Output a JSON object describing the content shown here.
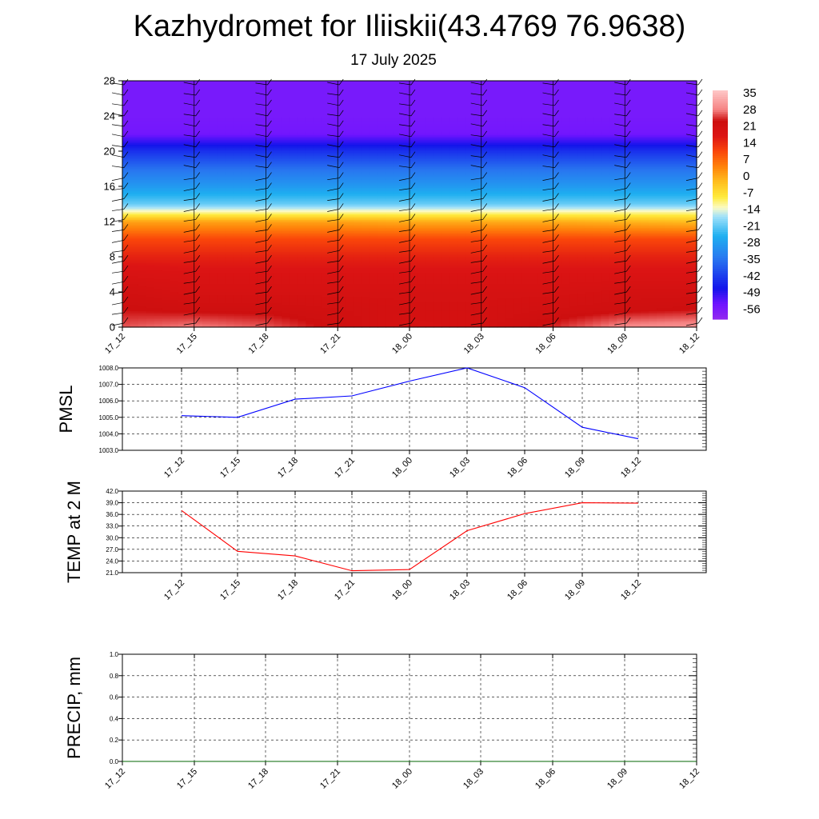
{
  "header": {
    "title": "Kazhydromet for Iliiskii(43.4769 76.9638)",
    "date": "17 July 2025"
  },
  "time_labels": [
    "17_12",
    "17_15",
    "17_18",
    "17_21",
    "18_00",
    "18_03",
    "18_06",
    "18_09",
    "18_12"
  ],
  "chart_data": [
    {
      "type": "heatmap",
      "title": "",
      "xlabel": "",
      "ylabel": "",
      "x": [
        "17_12",
        "17_15",
        "17_18",
        "17_21",
        "18_00",
        "18_03",
        "18_06",
        "18_09",
        "18_12"
      ],
      "y_ticks": [
        0,
        4,
        8,
        12,
        16,
        20,
        24,
        28
      ],
      "ylim": [
        0,
        28
      ],
      "y_levels": [
        0,
        2,
        4,
        6,
        8,
        10,
        12,
        13,
        14,
        16,
        18,
        20,
        21,
        22,
        24,
        28
      ],
      "values": [
        [
          31,
          33,
          31,
          27,
          24,
          25,
          29,
          34,
          35
        ],
        [
          28,
          27,
          27,
          26,
          25,
          25,
          26,
          27,
          28
        ],
        [
          26,
          24,
          24,
          24,
          24,
          24,
          24,
          25,
          25
        ],
        [
          23,
          22,
          22,
          22,
          22,
          22,
          22,
          22,
          22
        ],
        [
          19,
          19,
          19,
          19,
          19,
          19,
          19,
          19,
          19
        ],
        [
          14,
          14,
          14,
          14,
          14,
          14,
          14,
          14,
          14
        ],
        [
          3,
          3,
          3,
          3,
          2,
          2,
          2,
          1,
          0
        ],
        [
          -10,
          -10,
          -10,
          -10,
          -10,
          -10,
          -10,
          -10,
          -10
        ],
        [
          -20,
          -20,
          -20,
          -20,
          -20,
          -20,
          -20,
          -20,
          -20
        ],
        [
          -29,
          -29,
          -29,
          -29,
          -29,
          -29,
          -29,
          -29,
          -29
        ],
        [
          -36,
          -36,
          -36,
          -36,
          -36,
          -36,
          -36,
          -36,
          -36
        ],
        [
          -45,
          -45,
          -45,
          -45,
          -45,
          -45,
          -45,
          -45,
          -45
        ],
        [
          -51,
          -51,
          -51,
          -51,
          -51,
          -51,
          -51,
          -51,
          -51
        ],
        [
          -57,
          -57,
          -57,
          -57,
          -57,
          -57,
          -57,
          -57,
          -57
        ],
        [
          -58,
          -58,
          -58,
          -58,
          -58,
          -58,
          -58,
          -58,
          -58
        ],
        [
          -58,
          -58,
          -58,
          -58,
          -58,
          -58,
          -58,
          -58,
          -58
        ]
      ],
      "colorbar": {
        "labels": [
          "35",
          "28",
          "21",
          "14",
          "7",
          "0",
          "-7",
          "-14",
          "-21",
          "-28",
          "-35",
          "-42",
          "-49",
          "-56"
        ],
        "range": [
          -63,
          42
        ]
      },
      "wind_barbs": "black barbs at each time step and level"
    },
    {
      "type": "line",
      "ylabel": "PMSL",
      "x": [
        "17_12",
        "17_15",
        "17_18",
        "17_21",
        "18_00",
        "18_03",
        "18_06",
        "18_09",
        "18_12"
      ],
      "series": [
        {
          "color": "#0000ff",
          "values": [
            1005.1,
            1005.0,
            1006.1,
            1006.3,
            1007.2,
            1008.0,
            1006.8,
            1004.4,
            1003.7
          ]
        }
      ],
      "ylim": [
        1003.0,
        1008.0
      ],
      "y_ticks": [
        "1003.0",
        "1004.0",
        "1005.0",
        "1006.0",
        "1007.0",
        "1008.0"
      ],
      "grid": true
    },
    {
      "type": "line",
      "ylabel": "TEMP at 2 M",
      "x": [
        "17_12",
        "17_15",
        "17_18",
        "17_21",
        "18_00",
        "18_03",
        "18_06",
        "18_09",
        "18_12"
      ],
      "series": [
        {
          "color": "#ff0000",
          "values": [
            37.0,
            26.5,
            25.3,
            21.5,
            21.8,
            31.8,
            36.2,
            39.0,
            38.9
          ]
        }
      ],
      "ylim": [
        21.0,
        42.0
      ],
      "y_ticks": [
        "21.0",
        "24.0",
        "27.0",
        "30.0",
        "33.0",
        "36.0",
        "39.0",
        "42.0"
      ],
      "grid": true
    },
    {
      "type": "line",
      "ylabel": "PRECIP, mm",
      "x": [
        "17_12",
        "17_15",
        "17_18",
        "17_21",
        "18_00",
        "18_03",
        "18_06",
        "18_09",
        "18_12"
      ],
      "series": [
        {
          "color": "#006400",
          "values": [
            0,
            0,
            0,
            0,
            0,
            0,
            0,
            0,
            0
          ]
        }
      ],
      "ylim": [
        0.0,
        1.0
      ],
      "y_ticks": [
        "0.0",
        "0.2",
        "0.4",
        "0.6",
        "0.8",
        "1.0"
      ],
      "grid": true
    }
  ]
}
